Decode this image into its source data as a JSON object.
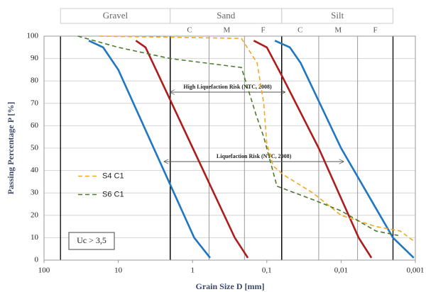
{
  "chart_data": {
    "type": "line",
    "x_label": "Grain Size D [mm]",
    "y_label": "Passing  Percentage P [%]",
    "xscale": "log",
    "xlim": [
      100,
      0.001
    ],
    "xticks": [
      100,
      10,
      1,
      {
        "value": 0.1,
        "label": "0,1"
      },
      {
        "value": 0.01,
        "label": "0,01"
      },
      {
        "value": 0.001,
        "label": "0,001"
      }
    ],
    "ylim": [
      0,
      100
    ],
    "yticks": [
      0,
      10,
      20,
      30,
      40,
      50,
      60,
      70,
      80,
      90,
      100
    ],
    "grid": true,
    "soil_classes": [
      {
        "label": "Gravel",
        "range": [
          60,
          2
        ]
      },
      {
        "label": "Sand",
        "range": [
          2,
          0.063
        ]
      },
      {
        "label": "Silt",
        "range": [
          0.063,
          0.002
        ]
      }
    ],
    "soil_subclasses": [
      {
        "label": "C",
        "range": [
          2,
          0.6
        ]
      },
      {
        "label": "M",
        "range": [
          0.6,
          0.2
        ]
      },
      {
        "label": "F",
        "range": [
          0.2,
          0.063
        ]
      },
      {
        "label": "C",
        "range": [
          0.063,
          0.02
        ]
      },
      {
        "label": "M",
        "range": [
          0.02,
          0.006
        ]
      },
      {
        "label": "F",
        "range": [
          0.006,
          0.002
        ]
      }
    ],
    "series": [
      {
        "color": "#1f77c4",
        "dash": false,
        "x": [
          25,
          16,
          10,
          0.95,
          0.58
        ],
        "values": [
          98,
          95,
          85,
          10,
          1
        ]
      },
      {
        "color": "#b01c1c",
        "dash": false,
        "x": [
          5.8,
          4.3,
          3.1,
          0.27,
          0.18
        ],
        "values": [
          98,
          95,
          85,
          10,
          1
        ]
      },
      {
        "color": "#b01c1c",
        "dash": false,
        "x": [
          0.15,
          0.1,
          0.062,
          0.02,
          0.0058,
          0.0039
        ],
        "values": [
          98,
          95,
          82,
          50,
          10,
          1
        ]
      },
      {
        "color": "#1f77c4",
        "dash": false,
        "x": [
          0.078,
          0.049,
          0.035,
          0.01,
          0.002,
          0.00105
        ],
        "values": [
          98,
          95,
          88,
          50,
          10,
          1
        ]
      },
      {
        "name": "S4 C1",
        "color": "#f5a623",
        "dash": true,
        "x": [
          18,
          0.22,
          0.135,
          0.11,
          0.1,
          0.082,
          0.059,
          0.024,
          0.01,
          0.0034,
          0.0016,
          0.001
        ],
        "values": [
          100,
          99,
          88,
          70,
          52,
          42,
          38,
          30,
          20,
          15,
          13,
          8
        ]
      },
      {
        "name": "S6 C1",
        "color": "#4a7a2a",
        "dash": true,
        "x": [
          35,
          10,
          2,
          0.22,
          0.14,
          0.11,
          0.073,
          0.024,
          0.01,
          0.0034,
          0.0017
        ],
        "values": [
          100,
          95,
          90,
          86,
          65,
          55,
          33,
          27,
          22,
          13,
          11
        ]
      }
    ],
    "annotations": [
      {
        "text": "High Liquefaction Risk (NTC, 2008)",
        "from": 2,
        "to": 0.057,
        "y": 75
      },
      {
        "text": "Liquefaction Risk (NTC, 2008)",
        "from": 2.4,
        "to": 0.0093,
        "y": 44
      }
    ],
    "note": "Uc > 3,5"
  }
}
